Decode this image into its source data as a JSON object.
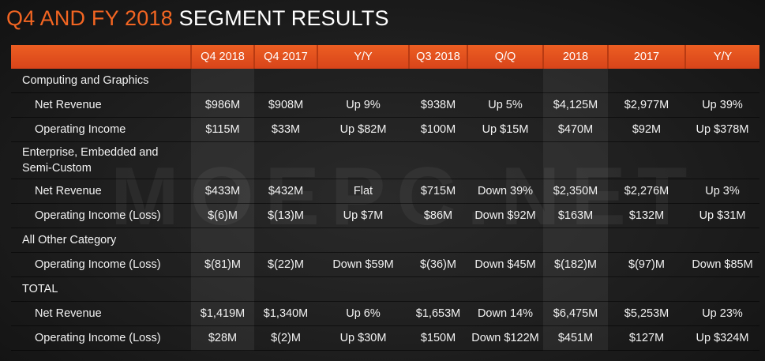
{
  "title": {
    "accent": "Q4 AND FY 2018",
    "main": "SEGMENT RESULTS"
  },
  "header": [
    "",
    "Q4 2018",
    "Q4 2017",
    "Y/Y",
    "Q3 2018",
    "Q/Q",
    "2018",
    "2017",
    "Y/Y"
  ],
  "rows": [
    {
      "label": "Computing and Graphics",
      "type": "cat",
      "cells": [
        "",
        "",
        "",
        "",
        "",
        "",
        "",
        ""
      ]
    },
    {
      "label": "Net Revenue",
      "type": "sub",
      "cells": [
        "$986M",
        "$908M",
        "Up 9%",
        "$938M",
        "Up 5%",
        "$4,125M",
        "$2,977M",
        "Up 39%"
      ]
    },
    {
      "label": "Operating Income",
      "type": "sub",
      "cells": [
        "$115M",
        "$33M",
        "Up $82M",
        "$100M",
        "Up $15M",
        "$470M",
        "$92M",
        "Up $378M"
      ]
    },
    {
      "label": "Enterprise, Embedded and Semi-Custom",
      "type": "cat2",
      "cells": [
        "",
        "",
        "",
        "",
        "",
        "",
        "",
        ""
      ]
    },
    {
      "label": "Net Revenue",
      "type": "sub",
      "cells": [
        "$433M",
        "$432M",
        "Flat",
        "$715M",
        "Down 39%",
        "$2,350M",
        "$2,276M",
        "Up 3%"
      ]
    },
    {
      "label": "Operating Income (Loss)",
      "type": "sub",
      "cells": [
        "$(6)M",
        "$(13)M",
        "Up $7M",
        "$86M",
        "Down $92M",
        "$163M",
        "$132M",
        "Up $31M"
      ]
    },
    {
      "label": "All Other Category",
      "type": "cat",
      "cells": [
        "",
        "",
        "",
        "",
        "",
        "",
        "",
        ""
      ]
    },
    {
      "label": "Operating Income (Loss)",
      "type": "sub",
      "cells": [
        "$(81)M",
        "$(22)M",
        "Down $59M",
        "$(36)M",
        "Down $45M",
        "$(182)M",
        "$(97)M",
        "Down $85M"
      ]
    },
    {
      "label": "TOTAL",
      "type": "cat",
      "cells": [
        "",
        "",
        "",
        "",
        "",
        "",
        "",
        ""
      ]
    },
    {
      "label": "Net Revenue",
      "type": "sub",
      "cells": [
        "$1,419M",
        "$1,340M",
        "Up 6%",
        "$1,653M",
        "Down 14%",
        "$6,475M",
        "$5,253M",
        "Up 23%"
      ]
    },
    {
      "label": "Operating Income (Loss)",
      "type": "sub",
      "cells": [
        "$28M",
        "$(2)M",
        "Up $30M",
        "$150M",
        "Down $122M",
        "$451M",
        "$127M",
        "Up $324M"
      ]
    }
  ],
  "watermark": "MOEPC.NET",
  "colors": {
    "accent": "#f26522",
    "header_bar": "#e2511f"
  }
}
